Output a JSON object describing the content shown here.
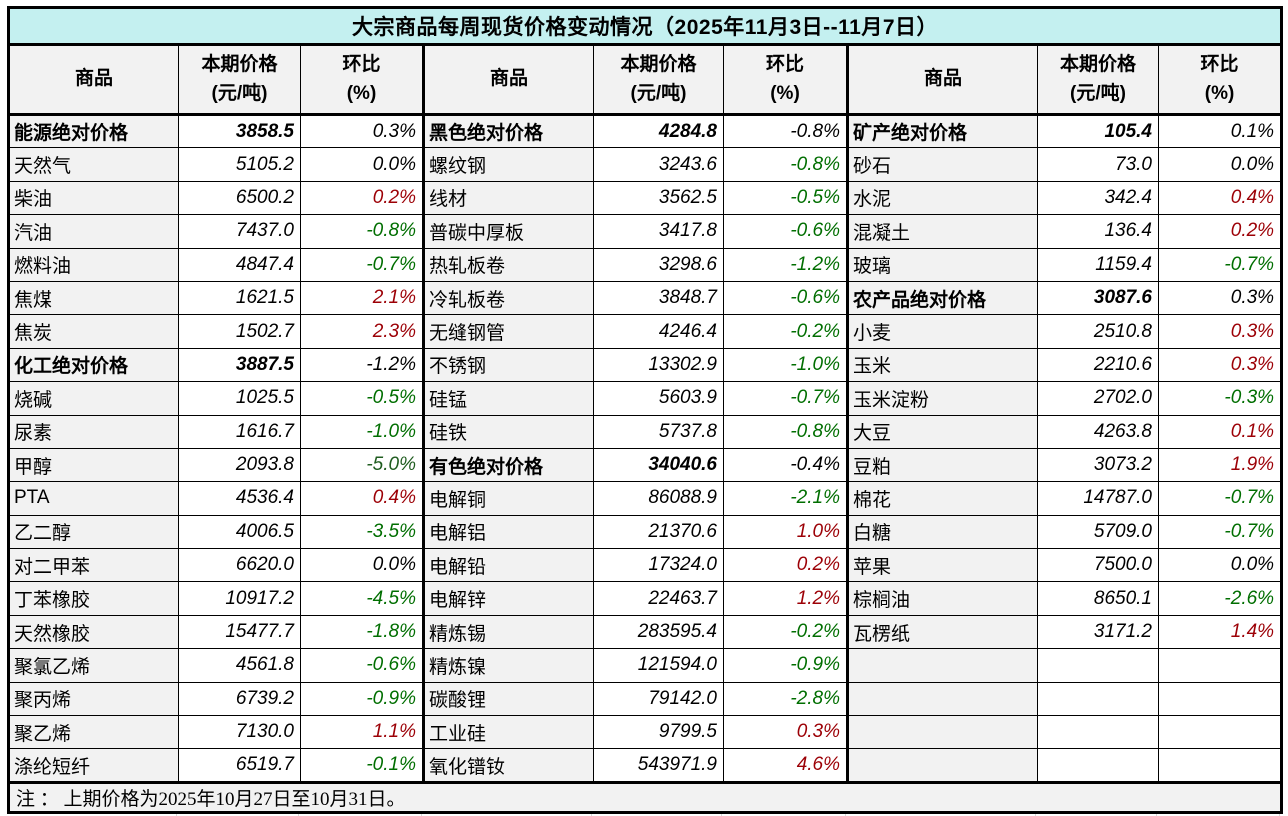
{
  "title": "大宗商品每周现货价格变动情况（2025年11月3日--11月7日）",
  "note": "注 ： 上期价格为2025年10月27日至10月31日。",
  "columns": {
    "name": "商品",
    "price_line1": "本期价格",
    "price_line2": "(元/吨)",
    "change_line1": "环比",
    "change_line2": "(%)"
  },
  "colors": {
    "title_bg": "#c4f0f0",
    "cat_bg": "#c4f0f0",
    "header_bg": "#f2f2f2",
    "name_bg": "#f2f2f2",
    "note_bg": "#f2f2f2",
    "up_bg": "#ffc7ce",
    "up_text": "#9c0006",
    "down_bg": "#c6efce",
    "down_text": "#006e00",
    "limit_bg": "#00f000",
    "limit_text": "#1f5c1f"
  },
  "groups": [
    {
      "rows": [
        {
          "name": "能源绝对价格",
          "price": "3858.5",
          "pct": "0.3%",
          "type": "cat"
        },
        {
          "name": "天然气",
          "price": "5105.2",
          "pct": "0.0%",
          "type": "flat"
        },
        {
          "name": "柴油",
          "price": "6500.2",
          "pct": "0.2%",
          "type": "up"
        },
        {
          "name": "汽油",
          "price": "7437.0",
          "pct": "-0.8%",
          "type": "down"
        },
        {
          "name": "燃料油",
          "price": "4847.4",
          "pct": "-0.7%",
          "type": "down"
        },
        {
          "name": "焦煤",
          "price": "1621.5",
          "pct": "2.1%",
          "type": "up"
        },
        {
          "name": "焦炭",
          "price": "1502.7",
          "pct": "2.3%",
          "type": "up"
        },
        {
          "name": "化工绝对价格",
          "price": "3887.5",
          "pct": "-1.2%",
          "type": "cat"
        },
        {
          "name": "烧碱",
          "price": "1025.5",
          "pct": "-0.5%",
          "type": "down"
        },
        {
          "name": "尿素",
          "price": "1616.7",
          "pct": "-1.0%",
          "type": "down"
        },
        {
          "name": "甲醇",
          "price": "2093.8",
          "pct": "-5.0%",
          "type": "limit"
        },
        {
          "name": "PTA",
          "price": "4536.4",
          "pct": "0.4%",
          "type": "up"
        },
        {
          "name": "乙二醇",
          "price": "4006.5",
          "pct": "-3.5%",
          "type": "down"
        },
        {
          "name": "对二甲苯",
          "price": "6620.0",
          "pct": "0.0%",
          "type": "flat"
        },
        {
          "name": "丁苯橡胶",
          "price": "10917.2",
          "pct": "-4.5%",
          "type": "down"
        },
        {
          "name": "天然橡胶",
          "price": "15477.7",
          "pct": "-1.8%",
          "type": "down"
        },
        {
          "name": "聚氯乙烯",
          "price": "4561.8",
          "pct": "-0.6%",
          "type": "down"
        },
        {
          "name": "聚丙烯",
          "price": "6739.2",
          "pct": "-0.9%",
          "type": "down"
        },
        {
          "name": "聚乙烯",
          "price": "7130.0",
          "pct": "1.1%",
          "type": "up"
        },
        {
          "name": "涤纶短纤",
          "price": "6519.7",
          "pct": "-0.1%",
          "type": "down"
        }
      ]
    },
    {
      "rows": [
        {
          "name": "黑色绝对价格",
          "price": "4284.8",
          "pct": "-0.8%",
          "type": "cat"
        },
        {
          "name": "螺纹钢",
          "price": "3243.6",
          "pct": "-0.8%",
          "type": "down"
        },
        {
          "name": "线材",
          "price": "3562.5",
          "pct": "-0.5%",
          "type": "down"
        },
        {
          "name": "普碳中厚板",
          "price": "3417.8",
          "pct": "-0.6%",
          "type": "down"
        },
        {
          "name": "热轧板卷",
          "price": "3298.6",
          "pct": "-1.2%",
          "type": "down"
        },
        {
          "name": "冷轧板卷",
          "price": "3848.7",
          "pct": "-0.6%",
          "type": "down"
        },
        {
          "name": "无缝钢管",
          "price": "4246.4",
          "pct": "-0.2%",
          "type": "down"
        },
        {
          "name": "不锈钢",
          "price": "13302.9",
          "pct": "-1.0%",
          "type": "down"
        },
        {
          "name": "硅锰",
          "price": "5603.9",
          "pct": "-0.7%",
          "type": "down"
        },
        {
          "name": "硅铁",
          "price": "5737.8",
          "pct": "-0.8%",
          "type": "down"
        },
        {
          "name": "有色绝对价格",
          "price": "34040.6",
          "pct": "-0.4%",
          "type": "cat"
        },
        {
          "name": "电解铜",
          "price": "86088.9",
          "pct": "-2.1%",
          "type": "down"
        },
        {
          "name": "电解铝",
          "price": "21370.6",
          "pct": "1.0%",
          "type": "up"
        },
        {
          "name": "电解铅",
          "price": "17324.0",
          "pct": "0.2%",
          "type": "up"
        },
        {
          "name": "电解锌",
          "price": "22463.7",
          "pct": "1.2%",
          "type": "up"
        },
        {
          "name": "精炼锡",
          "price": "283595.4",
          "pct": "-0.2%",
          "type": "down"
        },
        {
          "name": "精炼镍",
          "price": "121594.0",
          "pct": "-0.9%",
          "type": "down"
        },
        {
          "name": "碳酸锂",
          "price": "79142.0",
          "pct": "-2.8%",
          "type": "down"
        },
        {
          "name": "工业硅",
          "price": "9799.5",
          "pct": "0.3%",
          "type": "up"
        },
        {
          "name": "氧化镨钕",
          "price": "543971.9",
          "pct": "4.6%",
          "type": "up"
        }
      ]
    },
    {
      "rows": [
        {
          "name": "矿产绝对价格",
          "price": "105.4",
          "pct": "0.1%",
          "type": "cat"
        },
        {
          "name": "砂石",
          "price": "73.0",
          "pct": "0.0%",
          "type": "flat"
        },
        {
          "name": "水泥",
          "price": "342.4",
          "pct": "0.4%",
          "type": "up"
        },
        {
          "name": "混凝土",
          "price": "136.4",
          "pct": "0.2%",
          "type": "up"
        },
        {
          "name": "玻璃",
          "price": "1159.4",
          "pct": "-0.7%",
          "type": "down"
        },
        {
          "name": "农产品绝对价格",
          "price": "3087.6",
          "pct": "0.3%",
          "type": "cat"
        },
        {
          "name": "小麦",
          "price": "2510.8",
          "pct": "0.3%",
          "type": "up"
        },
        {
          "name": "玉米",
          "price": "2210.6",
          "pct": "0.3%",
          "type": "up"
        },
        {
          "name": "玉米淀粉",
          "price": "2702.0",
          "pct": "-0.3%",
          "type": "down"
        },
        {
          "name": "大豆",
          "price": "4263.8",
          "pct": "0.1%",
          "type": "up"
        },
        {
          "name": "豆粕",
          "price": "3073.2",
          "pct": "1.9%",
          "type": "up"
        },
        {
          "name": "棉花",
          "price": "14787.0",
          "pct": "-0.7%",
          "type": "down"
        },
        {
          "name": "白糖",
          "price": "5709.0",
          "pct": "-0.7%",
          "type": "down"
        },
        {
          "name": "苹果",
          "price": "7500.0",
          "pct": "0.0%",
          "type": "flat"
        },
        {
          "name": "棕榈油",
          "price": "8650.1",
          "pct": "-2.6%",
          "type": "down"
        },
        {
          "name": "瓦楞纸",
          "price": "3171.2",
          "pct": "1.4%",
          "type": "up"
        },
        {
          "name": "",
          "price": "",
          "pct": "",
          "type": "empty"
        },
        {
          "name": "",
          "price": "",
          "pct": "",
          "type": "empty"
        },
        {
          "name": "",
          "price": "",
          "pct": "",
          "type": "empty"
        },
        {
          "name": "",
          "price": "",
          "pct": "",
          "type": "empty"
        }
      ]
    }
  ]
}
